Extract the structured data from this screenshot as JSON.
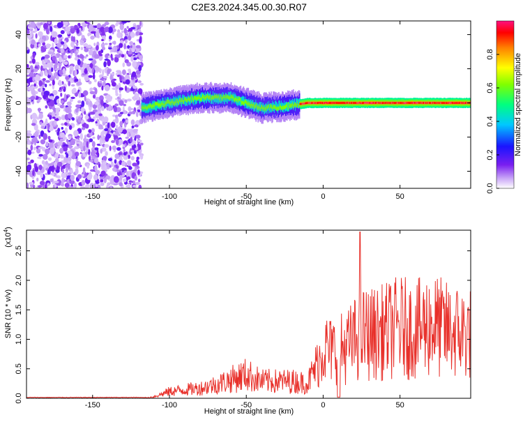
{
  "title": "C2E3.2024.345.00.30.R07",
  "colors": {
    "snr_line": "#e8302a",
    "axis": "#000000",
    "background": "#ffffff"
  },
  "chart_data": [
    {
      "type": "heatmap",
      "xlabel": "Height of straight line (km)",
      "ylabel": "Frequency (Hz)",
      "xlim": [
        -193,
        96
      ],
      "ylim": [
        -50,
        48
      ],
      "x_ticks": [
        -150,
        -100,
        -50,
        0,
        50
      ],
      "y_ticks": [
        -40,
        -20,
        0,
        20,
        40
      ],
      "colorbar": {
        "label": "Normalized spectral amplitude",
        "range": [
          0,
          1
        ],
        "ticks": [
          "0.0",
          "0.2",
          "0.4",
          "0.6",
          "0.8"
        ],
        "colormap": "rainbow"
      },
      "description_of_signal": {
        "noise_region_x": [
          -193,
          -118
        ],
        "ridge_start_x": -118,
        "ridge_center_hz": [
          [
            -118,
            -3
          ],
          [
            -100,
            0
          ],
          [
            -80,
            3
          ],
          [
            -60,
            3
          ],
          [
            -40,
            -3
          ],
          [
            -25,
            -2
          ],
          [
            -10,
            0
          ],
          [
            0,
            0
          ],
          [
            96,
            0
          ]
        ]
      }
    },
    {
      "type": "line",
      "xlabel": "Height of straight line (km)",
      "ylabel": "SNR (10 * v/v)",
      "multiplier_label": "(x10",
      "multiplier_exp": "4",
      "multiplier_close": ")",
      "xlim": [
        -193,
        96
      ],
      "ylim": [
        0,
        2.85
      ],
      "x_ticks": [
        -150,
        -100,
        -50,
        0,
        50
      ],
      "y_ticks": [
        "0.0",
        "0.5",
        "1.0",
        "1.5",
        "2.0",
        "2.5"
      ],
      "envelope": [
        [
          -193,
          0.01
        ],
        [
          -115,
          0.01
        ],
        [
          -110,
          0.05
        ],
        [
          -100,
          0.2
        ],
        [
          -90,
          0.25
        ],
        [
          -80,
          0.3
        ],
        [
          -70,
          0.4
        ],
        [
          -60,
          0.55
        ],
        [
          -50,
          0.7
        ],
        [
          -40,
          0.5
        ],
        [
          -30,
          0.5
        ],
        [
          -20,
          0.5
        ],
        [
          -10,
          0.45
        ],
        [
          -2,
          1.2
        ],
        [
          0,
          1.5
        ],
        [
          5,
          1.4
        ],
        [
          15,
          1.5
        ],
        [
          25,
          1.9
        ],
        [
          35,
          1.9
        ],
        [
          50,
          2.1
        ],
        [
          60,
          2.0
        ],
        [
          70,
          2.2
        ],
        [
          80,
          2.0
        ],
        [
          96,
          1.9
        ]
      ],
      "peak": [
        24,
        2.82
      ]
    }
  ]
}
